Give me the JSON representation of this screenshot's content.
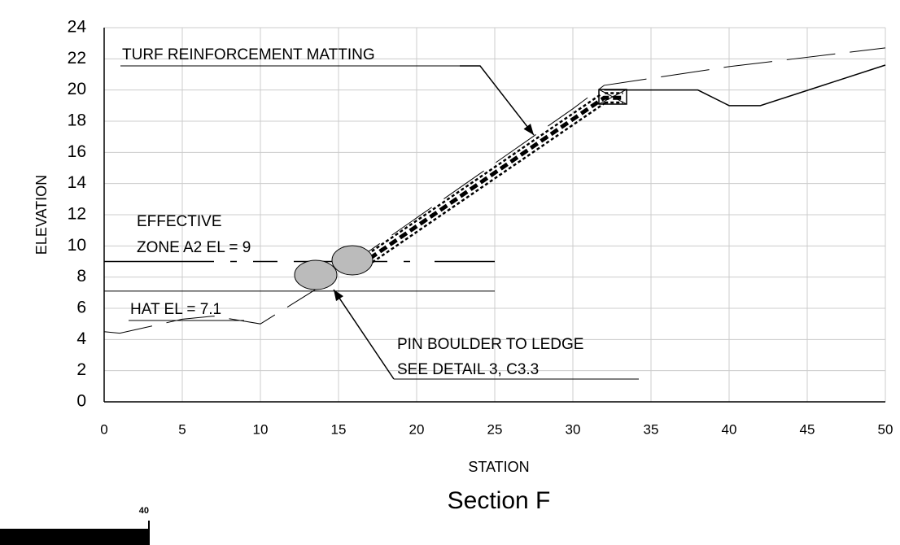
{
  "chart_data": {
    "type": "line",
    "title": "Section F",
    "x_label": "STATION",
    "y_label": "ELEVATION",
    "xlim": [
      0,
      50
    ],
    "ylim": [
      0,
      24
    ],
    "xticks": [
      0,
      5,
      10,
      15,
      20,
      25,
      30,
      35,
      40,
      45,
      50
    ],
    "yticks": [
      0,
      2,
      4,
      6,
      8,
      10,
      12,
      14,
      16,
      18,
      20,
      22,
      24
    ],
    "grid": true,
    "series": [
      {
        "color": "#000000",
        "x": [
          0,
          1,
          5,
          7,
          10,
          14,
          16,
          20,
          25,
          30,
          32,
          40,
          50
        ],
        "values": [
          4.5,
          4.4,
          5.3,
          5.5,
          5,
          7.5,
          9,
          11.8,
          15.3,
          18.8,
          20.3,
          21.5,
          22.7
        ]
      },
      {
        "color": "#000000",
        "x": [
          32,
          38,
          40,
          42,
          50
        ],
        "values": [
          20,
          20,
          19,
          19,
          21.6
        ]
      },
      {
        "color": "#000000",
        "x": [
          17,
          32,
          33.2
        ],
        "values": [
          9.2,
          19.5,
          19.5
        ]
      },
      {
        "color": "#000000",
        "x": [
          0,
          25
        ],
        "values": [
          9,
          9
        ]
      },
      {
        "color": "#000000",
        "x": [
          0,
          25
        ],
        "values": [
          7.1,
          7.1
        ]
      }
    ],
    "annotations": [
      "TURF REINFORCEMENT MATTING",
      "EFFECTIVE",
      "ZONE A2 EL = 9",
      "HAT EL = 7.1",
      "PIN BOULDER TO LEDGE",
      "SEE DETAIL 3, C3.3"
    ]
  },
  "scale_label": "40"
}
